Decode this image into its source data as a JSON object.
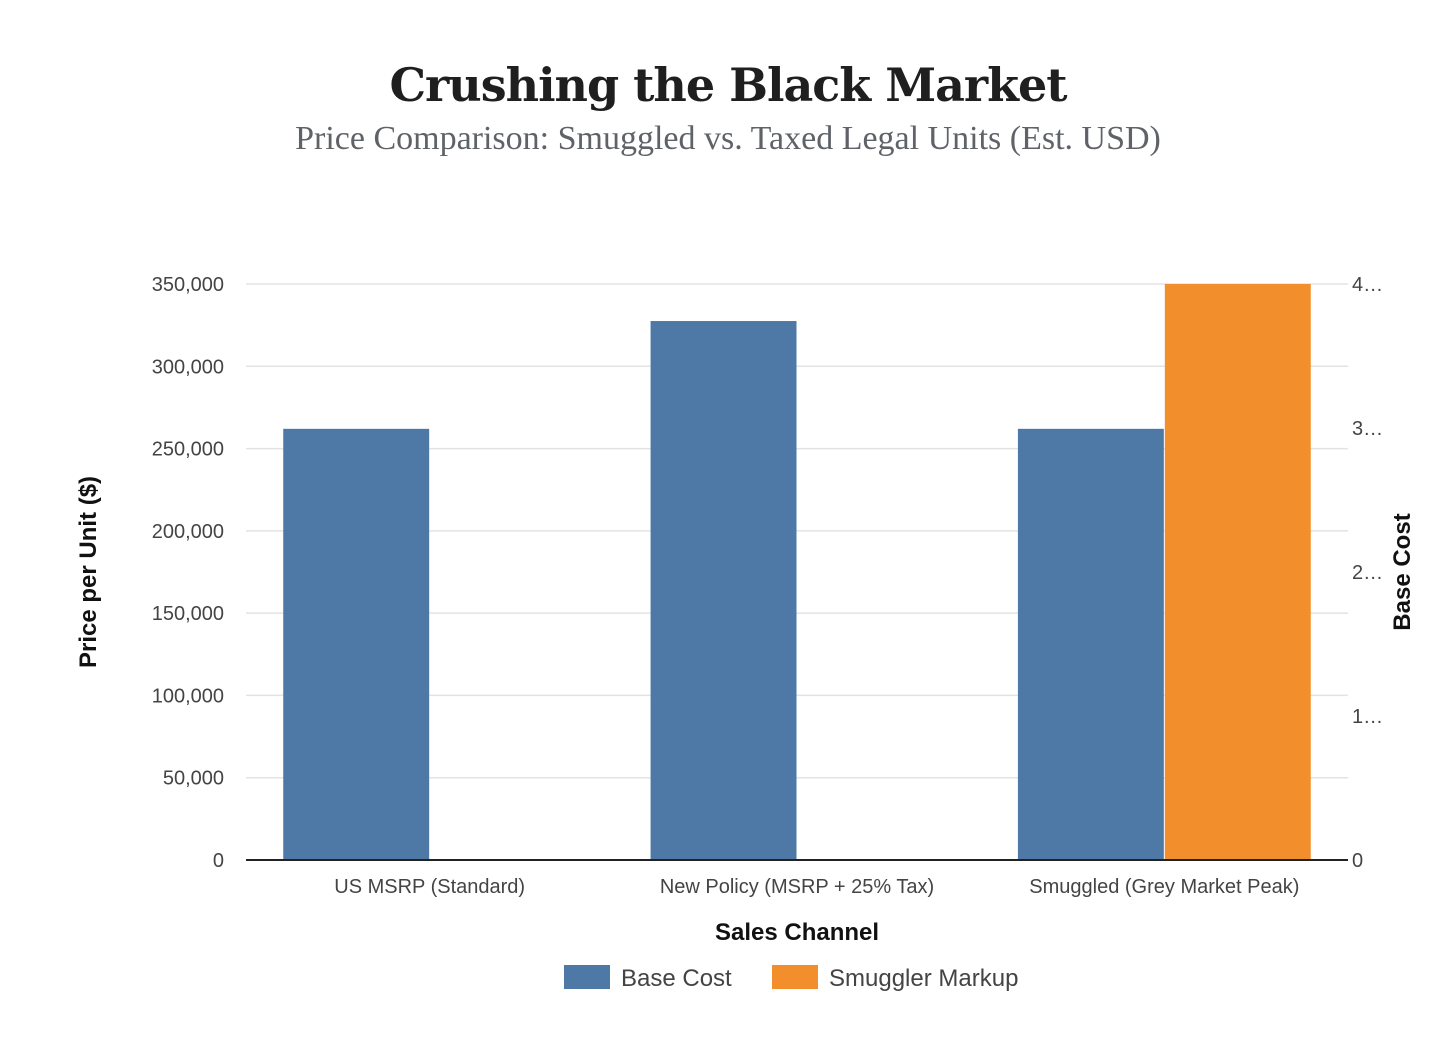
{
  "header": {
    "title": "Crushing the Black Market",
    "subtitle": "Price Comparison: Smuggled vs. Taxed Legal Units (Est. USD)"
  },
  "chart_data": {
    "type": "bar",
    "categories": [
      "US MSRP (Standard)",
      "New Policy (MSRP + 25% Tax)",
      "Smuggled (Grey Market Peak)"
    ],
    "series": [
      {
        "name": "Base Cost",
        "color": "#4e79a7",
        "values": [
          262000,
          327500,
          262000
        ]
      },
      {
        "name": "Smuggler Markup",
        "color": "#f28e2b",
        "values": [
          0,
          0,
          350000
        ]
      }
    ],
    "xlabel": "Sales Channel",
    "ylabel": "Price per Unit ($)",
    "y2label": "Base Cost",
    "ylim": [
      0,
      350000
    ],
    "y_ticks": [
      "0",
      "50,000",
      "100,000",
      "150,000",
      "200,000",
      "250,000",
      "300,000",
      "350,000"
    ],
    "y2_ticks": [
      "0",
      "1…",
      "2…",
      "3…",
      "4…"
    ],
    "grid": true,
    "legend": "bottom-center"
  }
}
